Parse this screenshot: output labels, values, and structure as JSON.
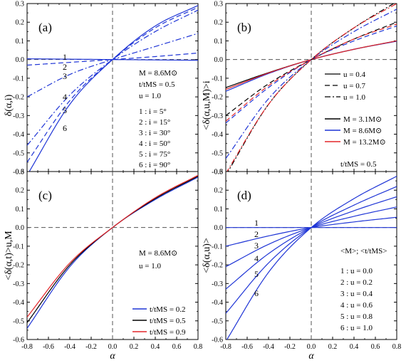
{
  "chart_data": [
    {
      "panel": "(a)",
      "type": "line",
      "ylabel": "δ(α,i)",
      "xlabel": "",
      "xlim": [
        -0.8,
        0.8
      ],
      "ylim": [
        -0.6,
        0.3
      ],
      "xticks": [
        "-0.8",
        "-0.6",
        "-0.4",
        "-0.2",
        "0.0",
        "0.2",
        "0.4",
        "0.6",
        "0.8"
      ],
      "yticks": [
        "-0.6",
        "-0.5",
        "-0.4",
        "-0.3",
        "-0.2",
        "-0.1",
        "0.0",
        "0.1",
        "0.2",
        "0.3"
      ],
      "annotation_lines": [
        "M = 8.6M⊙",
        "t/tMS = 0.5",
        "u = 1.0"
      ],
      "legend_lines": [
        "1 : i = 5°",
        "2 : i = 15°",
        "3 : i = 30°",
        "4 : i = 50°",
        "5 : i = 75°",
        "6 : i = 90°"
      ],
      "curve_labels": [
        "1",
        "2",
        "3",
        "4",
        "5",
        "6"
      ],
      "series": [
        {
          "label": "1",
          "style": "solid",
          "color": "#1f35d6",
          "x": [
            -0.8,
            -0.4,
            0.0,
            0.4,
            0.8
          ],
          "y": [
            0.004,
            0.002,
            0.0,
            -0.002,
            -0.004
          ]
        },
        {
          "label": "2",
          "style": "dashed",
          "color": "#1f35d6",
          "x": [
            -0.8,
            -0.4,
            0.0,
            0.4,
            0.8
          ],
          "y": [
            -0.03,
            -0.015,
            0.0,
            0.016,
            0.035
          ]
        },
        {
          "label": "3",
          "style": "dashdot",
          "color": "#1f35d6",
          "x": [
            -0.8,
            -0.4,
            0.0,
            0.4,
            0.8
          ],
          "y": [
            -0.2,
            -0.08,
            0.0,
            0.07,
            0.14
          ]
        },
        {
          "label": "4",
          "style": "dashdot",
          "color": "#1f35d6",
          "x": [
            -0.8,
            -0.4,
            0.0,
            0.4,
            0.8
          ],
          "y": [
            -0.46,
            -0.19,
            0.0,
            0.15,
            0.265
          ]
        },
        {
          "label": "5",
          "style": "dashed",
          "color": "#1f35d6",
          "x": [
            -0.8,
            -0.4,
            0.0,
            0.4,
            0.8
          ],
          "y": [
            -0.55,
            -0.22,
            0.0,
            0.17,
            0.28
          ]
        },
        {
          "label": "6",
          "style": "solid",
          "color": "#1f35d6",
          "x": [
            -0.8,
            -0.4,
            0.0,
            0.4,
            0.8
          ],
          "y": [
            -0.62,
            -0.24,
            0.0,
            0.18,
            0.29
          ]
        }
      ]
    },
    {
      "panel": "(b)",
      "type": "line",
      "ylabel": "<δ(α,u,M)>i",
      "xlabel": "",
      "xlim": [
        -0.8,
        0.8
      ],
      "ylim": [
        -0.6,
        0.3
      ],
      "xticks": [
        "-0.8",
        "-0.6",
        "-0.4",
        "-0.2",
        "0.0",
        "0.2",
        "0.4",
        "0.6",
        "0.8"
      ],
      "yticks": [
        "-0.6",
        "-0.5",
        "-0.4",
        "-0.3",
        "-0.2",
        "-0.1",
        "0.0",
        "0.1",
        "0.2",
        "0.3"
      ],
      "legend_style": [
        {
          "label": "u = 0.4",
          "style": "solid"
        },
        {
          "label": "u = 0.7",
          "style": "dashed"
        },
        {
          "label": "u = 1.0",
          "style": "dashdot"
        }
      ],
      "legend_color": [
        {
          "label": "M = 3.1M⊙",
          "color": "#000000"
        },
        {
          "label": "M = 8.6M⊙",
          "color": "#1f35d6"
        },
        {
          "label": "M = 13.2M⊙",
          "color": "#e3262a"
        }
      ],
      "footer_text": "t/tMS = 0.5",
      "series": [
        {
          "name": "u = 0.4, M = 3.1M⊙",
          "style": "solid",
          "color": "#000000",
          "x": [
            -0.8,
            -0.4,
            0.0,
            0.4,
            0.8
          ],
          "y": [
            -0.15,
            -0.07,
            0.0,
            0.055,
            0.1
          ]
        },
        {
          "name": "u = 0.4, M = 8.6M⊙",
          "style": "solid",
          "color": "#1f35d6",
          "x": [
            -0.8,
            -0.4,
            0.0,
            0.4,
            0.8
          ],
          "y": [
            -0.17,
            -0.075,
            0.0,
            0.055,
            0.098
          ]
        },
        {
          "name": "u = 0.4, M = 13.2M⊙",
          "style": "solid",
          "color": "#e3262a",
          "x": [
            -0.8,
            -0.4,
            0.0,
            0.4,
            0.8
          ],
          "y": [
            -0.16,
            -0.072,
            0.0,
            0.055,
            0.1
          ]
        },
        {
          "name": "u = 0.7, M = 3.1M⊙",
          "style": "dashed",
          "color": "#000000",
          "x": [
            -0.8,
            -0.4,
            0.0,
            0.4,
            0.8
          ],
          "y": [
            -0.3,
            -0.13,
            0.0,
            0.11,
            0.2
          ]
        },
        {
          "name": "u = 0.7, M = 8.6M⊙",
          "style": "dashed",
          "color": "#1f35d6",
          "x": [
            -0.8,
            -0.4,
            0.0,
            0.4,
            0.8
          ],
          "y": [
            -0.34,
            -0.15,
            0.0,
            0.1,
            0.18
          ]
        },
        {
          "name": "u = 0.7, M = 13.2M⊙",
          "style": "dashed",
          "color": "#e3262a",
          "x": [
            -0.8,
            -0.4,
            0.0,
            0.4,
            0.8
          ],
          "y": [
            -0.33,
            -0.14,
            0.0,
            0.11,
            0.19
          ]
        },
        {
          "name": "u = 1.0, M = 3.1M⊙",
          "style": "dashdot",
          "color": "#000000",
          "x": [
            -0.8,
            -0.4,
            0.0,
            0.4,
            0.8
          ],
          "y": [
            -0.62,
            -0.24,
            0.0,
            0.17,
            0.31
          ]
        },
        {
          "name": "u = 1.0, M = 8.6M⊙",
          "style": "dashdot",
          "color": "#1f35d6",
          "x": [
            -0.8,
            -0.4,
            0.0,
            0.4,
            0.8
          ],
          "y": [
            -0.53,
            -0.21,
            0.0,
            0.15,
            0.27
          ]
        },
        {
          "name": "u = 1.0, M = 13.2M⊙",
          "style": "dashdot",
          "color": "#e3262a",
          "x": [
            -0.8,
            -0.4,
            0.0,
            0.4,
            0.8
          ],
          "y": [
            -0.61,
            -0.24,
            0.0,
            0.17,
            0.3
          ]
        }
      ]
    },
    {
      "panel": "(c)",
      "type": "line",
      "ylabel": "<δ(α,t)>u,M",
      "xlabel": "α",
      "xlim": [
        -0.8,
        0.8
      ],
      "ylim": [
        -0.6,
        0.3
      ],
      "xticks": [
        "-0.8",
        "-0.6",
        "-0.4",
        "-0.2",
        "0.0",
        "0.2",
        "0.4",
        "0.6",
        "0.8"
      ],
      "yticks": [
        "-0.6",
        "-0.5",
        "-0.4",
        "-0.3",
        "-0.2",
        "-0.1",
        "0.0",
        "0.1",
        "0.2",
        "0.3"
      ],
      "annotation_lines": [
        "M = 8.6M⊙",
        "u = 1.0"
      ],
      "series": [
        {
          "name": "t/tMS = 0.2",
          "style": "solid",
          "color": "#1f35d6",
          "x": [
            -0.8,
            -0.4,
            0.0,
            0.4,
            0.8
          ],
          "y": [
            -0.54,
            -0.21,
            0.0,
            0.15,
            0.27
          ]
        },
        {
          "name": "t/tMS = 0.5",
          "style": "solid",
          "color": "#000000",
          "x": [
            -0.8,
            -0.4,
            0.0,
            0.4,
            0.8
          ],
          "y": [
            -0.51,
            -0.2,
            0.0,
            0.155,
            0.275
          ]
        },
        {
          "name": "t/tMS = 0.9",
          "style": "solid",
          "color": "#e3262a",
          "x": [
            -0.8,
            -0.4,
            0.0,
            0.4,
            0.8
          ],
          "y": [
            -0.48,
            -0.19,
            0.0,
            0.16,
            0.28
          ]
        }
      ]
    },
    {
      "panel": "(d)",
      "type": "line",
      "ylabel": "<δ(α,u)>",
      "xlabel": "α",
      "xlim": [
        -0.8,
        0.8
      ],
      "ylim": [
        -0.6,
        0.3
      ],
      "xticks": [
        "-0.8",
        "-0.6",
        "-0.4",
        "-0.2",
        "0.0",
        "0.2",
        "0.4",
        "0.6",
        "0.8"
      ],
      "yticks": [
        "-0.6",
        "-0.5",
        "-0.4",
        "-0.3",
        "-0.2",
        "-0.1",
        "0.0",
        "0.1",
        "0.2",
        "0.3"
      ],
      "legend_title": "<M>; <t/tMS>",
      "legend_lines": [
        "1 : u = 0.0",
        "2 : u = 0.2",
        "3 : u = 0.4",
        "4 : u = 0.6",
        "5 : u = 0.8",
        "6 : u = 1.0"
      ],
      "curve_labels": [
        "1",
        "2",
        "3",
        "4",
        "5",
        "6"
      ],
      "series": [
        {
          "label": "1",
          "style": "solid",
          "color": "#1f35d6",
          "x": [
            -0.8,
            -0.4,
            0.0,
            0.4,
            0.8
          ],
          "y": [
            0.0,
            0.0,
            0.0,
            0.0,
            0.0
          ]
        },
        {
          "label": "2",
          "style": "solid",
          "color": "#1f35d6",
          "x": [
            -0.8,
            -0.4,
            0.0,
            0.4,
            0.8
          ],
          "y": [
            -0.1,
            -0.045,
            0.0,
            0.03,
            0.055
          ]
        },
        {
          "label": "3",
          "style": "solid",
          "color": "#1f35d6",
          "x": [
            -0.8,
            -0.4,
            0.0,
            0.4,
            0.8
          ],
          "y": [
            -0.21,
            -0.09,
            0.0,
            0.06,
            0.11
          ]
        },
        {
          "label": "4",
          "style": "solid",
          "color": "#1f35d6",
          "x": [
            -0.8,
            -0.4,
            0.0,
            0.4,
            0.8
          ],
          "y": [
            -0.33,
            -0.14,
            0.0,
            0.09,
            0.165
          ]
        },
        {
          "label": "5",
          "style": "solid",
          "color": "#1f35d6",
          "x": [
            -0.8,
            -0.4,
            0.0,
            0.4,
            0.8
          ],
          "y": [
            -0.46,
            -0.19,
            0.0,
            0.12,
            0.22
          ]
        },
        {
          "label": "6",
          "style": "solid",
          "color": "#1f35d6",
          "x": [
            -0.8,
            -0.4,
            0.0,
            0.4,
            0.8
          ],
          "y": [
            -0.61,
            -0.24,
            0.0,
            0.155,
            0.275
          ]
        }
      ]
    }
  ]
}
